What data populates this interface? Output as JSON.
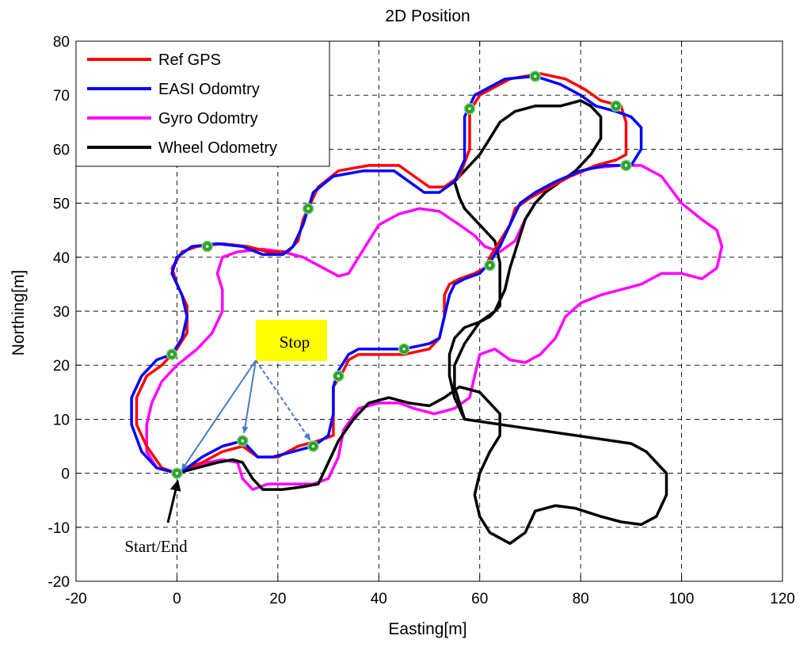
{
  "chart_data": {
    "type": "line",
    "title": "2D Position",
    "xlabel": "Easting[m]",
    "ylabel": "Northing[m]",
    "xlim": [
      -20,
      120
    ],
    "ylim": [
      -20,
      80
    ],
    "xticks": [
      -20,
      0,
      20,
      40,
      60,
      80,
      100,
      120
    ],
    "yticks": [
      -20,
      -10,
      0,
      10,
      20,
      30,
      40,
      50,
      60,
      70,
      80
    ],
    "grid": true,
    "legend_position": "top-left",
    "series": [
      {
        "name": "Ref GPS",
        "color": "#ff0000",
        "points": [
          [
            0,
            0
          ],
          [
            -3,
            1
          ],
          [
            -6,
            5
          ],
          [
            -8,
            9
          ],
          [
            -8,
            14
          ],
          [
            -6,
            18
          ],
          [
            -3,
            20
          ],
          [
            0,
            23
          ],
          [
            2,
            26
          ],
          [
            2,
            31
          ],
          [
            0,
            35
          ],
          [
            -1,
            38
          ],
          [
            1,
            41
          ],
          [
            4,
            42
          ],
          [
            9,
            42.5
          ],
          [
            14,
            42
          ],
          [
            18,
            41
          ],
          [
            22,
            41
          ],
          [
            24,
            43
          ],
          [
            25,
            47
          ],
          [
            26,
            49
          ],
          [
            28,
            53
          ],
          [
            32,
            56
          ],
          [
            38,
            57
          ],
          [
            44,
            57
          ],
          [
            47,
            55
          ],
          [
            50,
            53
          ],
          [
            53,
            53
          ],
          [
            56,
            55
          ],
          [
            58,
            60
          ],
          [
            58,
            67
          ],
          [
            60,
            70
          ],
          [
            66,
            73
          ],
          [
            72,
            74
          ],
          [
            77,
            73
          ],
          [
            81,
            71
          ],
          [
            84,
            69
          ],
          [
            88,
            68
          ],
          [
            89,
            65
          ],
          [
            89,
            62
          ],
          [
            89,
            59
          ],
          [
            87,
            58
          ],
          [
            83,
            57
          ],
          [
            78,
            55
          ],
          [
            74,
            53
          ],
          [
            70,
            51
          ],
          [
            67,
            49
          ],
          [
            66,
            46
          ],
          [
            64,
            43
          ],
          [
            62,
            40
          ],
          [
            61,
            38
          ],
          [
            59,
            37
          ],
          [
            56,
            36
          ],
          [
            54,
            35
          ],
          [
            53,
            33
          ],
          [
            53,
            29
          ],
          [
            52,
            25
          ],
          [
            50,
            23
          ],
          [
            45,
            22
          ],
          [
            40,
            22
          ],
          [
            36,
            22
          ],
          [
            34,
            21
          ],
          [
            33,
            19
          ],
          [
            31,
            16
          ],
          [
            31,
            11
          ],
          [
            31,
            7
          ],
          [
            28,
            6
          ],
          [
            24,
            5
          ],
          [
            20,
            3
          ],
          [
            16,
            3
          ],
          [
            13,
            5
          ],
          [
            9,
            4
          ],
          [
            5,
            2
          ],
          [
            2,
            1
          ],
          [
            0,
            0
          ]
        ]
      },
      {
        "name": "EASI Odomtry",
        "color": "#0000ff",
        "points": [
          [
            0,
            0
          ],
          [
            -4,
            1
          ],
          [
            -7,
            4
          ],
          [
            -9,
            9
          ],
          [
            -9,
            14
          ],
          [
            -7,
            18
          ],
          [
            -4,
            21
          ],
          [
            -1,
            22
          ],
          [
            1,
            25
          ],
          [
            2,
            29
          ],
          [
            1,
            33
          ],
          [
            -1,
            37
          ],
          [
            0,
            40
          ],
          [
            3,
            42
          ],
          [
            8,
            42.5
          ],
          [
            13,
            42
          ],
          [
            17,
            40.5
          ],
          [
            21,
            40.5
          ],
          [
            23,
            42
          ],
          [
            25,
            46
          ],
          [
            26,
            49
          ],
          [
            27,
            52
          ],
          [
            31,
            55
          ],
          [
            37,
            56
          ],
          [
            43,
            56
          ],
          [
            46,
            54
          ],
          [
            49,
            52
          ],
          [
            52,
            52
          ],
          [
            55,
            54
          ],
          [
            57,
            58
          ],
          [
            57,
            66
          ],
          [
            59,
            70
          ],
          [
            65,
            73
          ],
          [
            71,
            73.5
          ],
          [
            76,
            72
          ],
          [
            80,
            70
          ],
          [
            83,
            68
          ],
          [
            87,
            67
          ],
          [
            90,
            66
          ],
          [
            92,
            64
          ],
          [
            92,
            60
          ],
          [
            90,
            57
          ],
          [
            85,
            57
          ],
          [
            80,
            56
          ],
          [
            75,
            54
          ],
          [
            71,
            52
          ],
          [
            68,
            50
          ],
          [
            66,
            46
          ],
          [
            64,
            42
          ],
          [
            62,
            39
          ],
          [
            60,
            37
          ],
          [
            57,
            36
          ],
          [
            55,
            35
          ],
          [
            54,
            33
          ],
          [
            53,
            29
          ],
          [
            52,
            25
          ],
          [
            50,
            24
          ],
          [
            45,
            23
          ],
          [
            40,
            23
          ],
          [
            36,
            23
          ],
          [
            34,
            22
          ],
          [
            32,
            19
          ],
          [
            31,
            16
          ],
          [
            31,
            11
          ],
          [
            30,
            7
          ],
          [
            27,
            5
          ],
          [
            23,
            4
          ],
          [
            19,
            3
          ],
          [
            16,
            3
          ],
          [
            13,
            6
          ],
          [
            9,
            5
          ],
          [
            5,
            3
          ],
          [
            2,
            1
          ],
          [
            0,
            0
          ]
        ]
      },
      {
        "name": "Gyro Odomtry",
        "color": "#ff00ff",
        "points": [
          [
            0,
            0
          ],
          [
            -4,
            1
          ],
          [
            -6,
            4
          ],
          [
            -6,
            9
          ],
          [
            -5,
            13
          ],
          [
            -3,
            17
          ],
          [
            0,
            20
          ],
          [
            4,
            23
          ],
          [
            7,
            26
          ],
          [
            9,
            30
          ],
          [
            9,
            34
          ],
          [
            8,
            37
          ],
          [
            9,
            40
          ],
          [
            12,
            41
          ],
          [
            17,
            41.5
          ],
          [
            21,
            41
          ],
          [
            25,
            40
          ],
          [
            29,
            38
          ],
          [
            32,
            36.5
          ],
          [
            34,
            37
          ],
          [
            36,
            40
          ],
          [
            38,
            43
          ],
          [
            40,
            46
          ],
          [
            44,
            48
          ],
          [
            48,
            49
          ],
          [
            52,
            48.5
          ],
          [
            56,
            46
          ],
          [
            59,
            44
          ],
          [
            61,
            42
          ],
          [
            64,
            41
          ],
          [
            67,
            43
          ],
          [
            69,
            47
          ],
          [
            71,
            50
          ],
          [
            74,
            53
          ],
          [
            78,
            55
          ],
          [
            82,
            56.5
          ],
          [
            88,
            57
          ],
          [
            92,
            57
          ],
          [
            96,
            55
          ],
          [
            100,
            50
          ],
          [
            104,
            47
          ],
          [
            107,
            45
          ],
          [
            108,
            42
          ],
          [
            107,
            38
          ],
          [
            104,
            36
          ],
          [
            100,
            37
          ],
          [
            96,
            37
          ],
          [
            92,
            35
          ],
          [
            88,
            34
          ],
          [
            84,
            33
          ],
          [
            80,
            31.5
          ],
          [
            77,
            29
          ],
          [
            75,
            25
          ],
          [
            72,
            22
          ],
          [
            69,
            20.5
          ],
          [
            66,
            21
          ],
          [
            63,
            23
          ],
          [
            60,
            22
          ],
          [
            59,
            18
          ],
          [
            58,
            14
          ],
          [
            55,
            12
          ],
          [
            51,
            11
          ],
          [
            47,
            12
          ],
          [
            44,
            13
          ],
          [
            40,
            13
          ],
          [
            36,
            12
          ],
          [
            33,
            8
          ],
          [
            32,
            3
          ],
          [
            30,
            -1
          ],
          [
            27,
            -2
          ],
          [
            22,
            -2
          ],
          [
            18,
            -2
          ],
          [
            15,
            -3
          ],
          [
            13,
            -1
          ],
          [
            12,
            2
          ],
          [
            9,
            2.5
          ],
          [
            6,
            2
          ],
          [
            3,
            1
          ],
          [
            0,
            0
          ]
        ]
      },
      {
        "name": "Wheel Odometry",
        "color": "#000000",
        "points": [
          [
            0,
            0
          ],
          [
            4,
            1
          ],
          [
            8,
            2
          ],
          [
            11,
            2.5
          ],
          [
            13,
            2
          ],
          [
            15,
            -1
          ],
          [
            17,
            -3
          ],
          [
            21,
            -3
          ],
          [
            25,
            -2.5
          ],
          [
            28,
            -2
          ],
          [
            30,
            2
          ],
          [
            32,
            6
          ],
          [
            35,
            10
          ],
          [
            38,
            13
          ],
          [
            42,
            14
          ],
          [
            46,
            13
          ],
          [
            50,
            12.5
          ],
          [
            53,
            14
          ],
          [
            56,
            16
          ],
          [
            60,
            15
          ],
          [
            62,
            13
          ],
          [
            64,
            11
          ],
          [
            64,
            7
          ],
          [
            62,
            4
          ],
          [
            60,
            0
          ],
          [
            59,
            -4
          ],
          [
            60,
            -8
          ],
          [
            62,
            -11
          ],
          [
            66,
            -13
          ],
          [
            69,
            -11
          ],
          [
            71,
            -7
          ],
          [
            75,
            -6
          ],
          [
            79,
            -6.5
          ],
          [
            84,
            -8
          ],
          [
            88,
            -9
          ],
          [
            92,
            -9.5
          ],
          [
            95,
            -8
          ],
          [
            97,
            -4
          ],
          [
            97,
            0
          ],
          [
            95,
            2
          ],
          [
            93,
            4
          ],
          [
            90,
            5.5
          ],
          [
            90,
            5.5
          ],
          [
            57,
            10
          ],
          [
            55,
            14
          ],
          [
            54,
            18
          ],
          [
            54,
            22
          ],
          [
            55,
            25
          ],
          [
            57,
            27
          ],
          [
            60,
            28
          ],
          [
            62,
            29
          ],
          [
            64,
            31
          ],
          [
            64,
            35
          ],
          [
            64,
            39
          ],
          [
            63,
            43
          ],
          [
            61,
            45
          ],
          [
            59,
            47
          ],
          [
            57,
            49
          ],
          [
            56,
            51
          ],
          [
            55,
            54
          ],
          [
            57,
            56
          ],
          [
            60,
            59
          ],
          [
            62,
            62
          ],
          [
            64,
            65
          ],
          [
            67,
            67
          ],
          [
            71,
            68
          ],
          [
            76,
            68
          ],
          [
            80,
            69
          ],
          [
            82,
            68
          ],
          [
            84,
            66
          ],
          [
            84,
            62
          ],
          [
            82,
            59
          ],
          [
            79,
            56
          ],
          [
            76,
            54
          ],
          [
            73,
            52
          ],
          [
            71,
            50
          ],
          [
            69,
            47
          ],
          [
            68,
            44
          ],
          [
            67,
            41
          ],
          [
            66,
            38
          ],
          [
            65,
            34
          ],
          [
            63,
            30
          ],
          [
            60,
            28
          ],
          [
            57,
            24
          ],
          [
            55,
            20
          ],
          [
            55,
            16
          ],
          [
            57,
            10
          ]
        ]
      }
    ],
    "markers": [
      [
        0,
        0
      ],
      [
        -1,
        22
      ],
      [
        6,
        42
      ],
      [
        26,
        49
      ],
      [
        58,
        67.5
      ],
      [
        71,
        73.5
      ],
      [
        87,
        68
      ],
      [
        89,
        57
      ],
      [
        62,
        38.5
      ],
      [
        45,
        23
      ],
      [
        32,
        18
      ],
      [
        27,
        5
      ],
      [
        13,
        6
      ]
    ],
    "annotations": {
      "stop_label": "Stop",
      "start_label": "Start/End"
    }
  }
}
